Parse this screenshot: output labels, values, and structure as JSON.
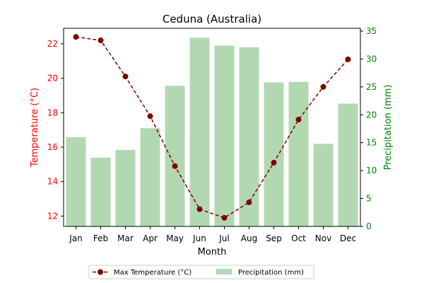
{
  "chart_data": {
    "type": "bar",
    "title": "Ceduna (Australia)",
    "xlabel": "Month",
    "categories": [
      "Jan",
      "Feb",
      "Mar",
      "Apr",
      "May",
      "Jun",
      "Jul",
      "Aug",
      "Sep",
      "Oct",
      "Nov",
      "Dec"
    ],
    "y_left": {
      "label": "Temperature (°C)",
      "color": "#ff0000",
      "lim": [
        11.4,
        22.9
      ],
      "ticks": [
        12,
        14,
        16,
        18,
        20,
        22
      ]
    },
    "y_right": {
      "label": "Precipitation (mm)",
      "color": "#008000",
      "lim": [
        0,
        35.5
      ],
      "ticks": [
        0,
        5,
        10,
        15,
        20,
        25,
        30,
        35
      ]
    },
    "series": [
      {
        "name": "Max Temperature (°C)",
        "type": "line",
        "axis": "left",
        "color": "#800000",
        "style": "dashed",
        "marker": "circle",
        "values": [
          22.4,
          22.2,
          20.1,
          17.8,
          14.9,
          12.4,
          11.9,
          12.8,
          15.1,
          17.6,
          19.5,
          21.1
        ]
      },
      {
        "name": "Precipitation (mm)",
        "type": "bar",
        "axis": "right",
        "color": "#b2d8b2",
        "values": [
          16.0,
          12.3,
          13.7,
          17.6,
          25.2,
          33.8,
          32.4,
          32.1,
          25.8,
          25.9,
          14.8,
          22.0
        ]
      }
    ],
    "legend": {
      "placement": "bottom-center"
    },
    "grid": false
  }
}
